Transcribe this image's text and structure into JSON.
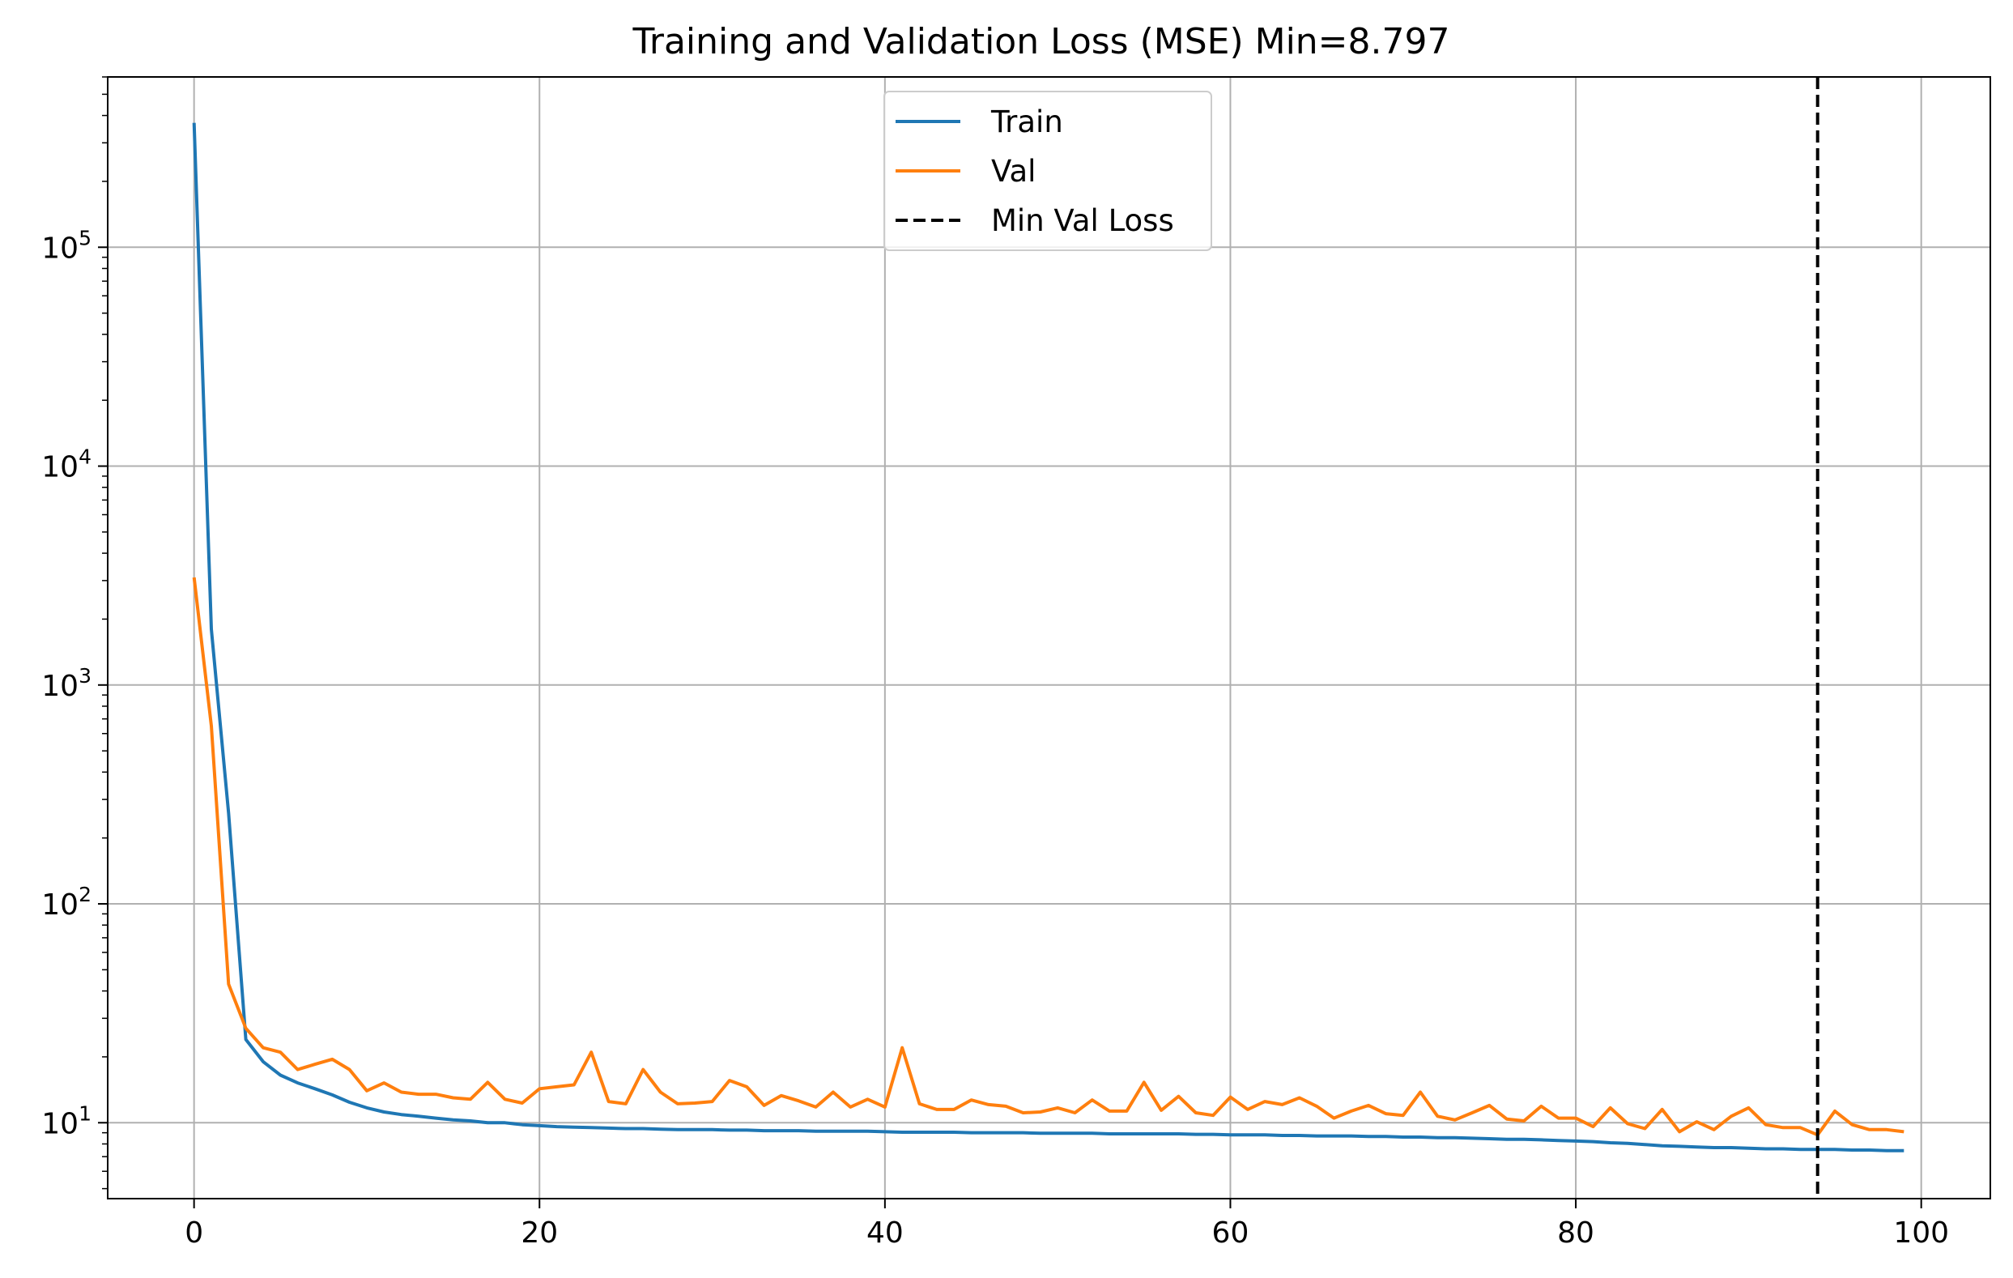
{
  "chart_data": {
    "type": "line",
    "title": "Training and Validation Loss (MSE) Min=8.797",
    "xlabel": "",
    "ylabel": "",
    "xlim": [
      -5,
      104
    ],
    "ylim": [
      4.5,
      600000
    ],
    "yscale": "log",
    "grid": true,
    "legend_position": "top-center",
    "x_ticks": [
      {
        "value": 0,
        "label": "0"
      },
      {
        "value": 20,
        "label": "20"
      },
      {
        "value": 40,
        "label": "40"
      },
      {
        "value": 60,
        "label": "60"
      },
      {
        "value": 80,
        "label": "80"
      },
      {
        "value": 100,
        "label": "100"
      }
    ],
    "y_ticks": [
      {
        "value": 10,
        "base": "10",
        "exponent": "1"
      },
      {
        "value": 100,
        "base": "10",
        "exponent": "2"
      },
      {
        "value": 1000,
        "base": "10",
        "exponent": "3"
      },
      {
        "value": 10000,
        "base": "10",
        "exponent": "4"
      },
      {
        "value": 100000,
        "base": "10",
        "exponent": "5"
      }
    ],
    "series": [
      {
        "name": "Train",
        "color": "#1f77b4",
        "style": "solid",
        "x": [
          0,
          1,
          2,
          3,
          4,
          5,
          6,
          7,
          8,
          9,
          10,
          11,
          12,
          13,
          14,
          15,
          16,
          17,
          18,
          19,
          20,
          21,
          22,
          23,
          24,
          25,
          26,
          27,
          28,
          29,
          30,
          31,
          32,
          33,
          34,
          35,
          36,
          37,
          38,
          39,
          40,
          41,
          42,
          43,
          44,
          45,
          46,
          47,
          48,
          49,
          50,
          51,
          52,
          53,
          54,
          55,
          56,
          57,
          58,
          59,
          60,
          61,
          62,
          63,
          64,
          65,
          66,
          67,
          68,
          69,
          70,
          71,
          72,
          73,
          74,
          75,
          76,
          77,
          78,
          79,
          80,
          81,
          82,
          83,
          84,
          85,
          86,
          87,
          88,
          89,
          90,
          91,
          92,
          93,
          94,
          95,
          96,
          97,
          98,
          99
        ],
        "values": [
          370000,
          1800,
          260,
          24,
          19,
          16.5,
          15.2,
          14.3,
          13.4,
          12.4,
          11.7,
          11.2,
          10.9,
          10.7,
          10.5,
          10.3,
          10.2,
          10.0,
          10.0,
          9.8,
          9.7,
          9.6,
          9.55,
          9.5,
          9.45,
          9.4,
          9.4,
          9.35,
          9.3,
          9.3,
          9.3,
          9.25,
          9.25,
          9.2,
          9.2,
          9.2,
          9.15,
          9.15,
          9.15,
          9.15,
          9.1,
          9.05,
          9.05,
          9.05,
          9.05,
          9.0,
          9.0,
          9.0,
          9.0,
          8.95,
          8.95,
          8.95,
          8.95,
          8.9,
          8.9,
          8.9,
          8.9,
          8.9,
          8.85,
          8.85,
          8.8,
          8.8,
          8.8,
          8.75,
          8.75,
          8.7,
          8.7,
          8.7,
          8.65,
          8.65,
          8.6,
          8.6,
          8.55,
          8.55,
          8.5,
          8.45,
          8.4,
          8.4,
          8.35,
          8.3,
          8.25,
          8.2,
          8.1,
          8.05,
          7.95,
          7.85,
          7.8,
          7.75,
          7.7,
          7.7,
          7.65,
          7.6,
          7.6,
          7.55,
          7.55,
          7.55,
          7.5,
          7.5,
          7.45,
          7.45
        ]
      },
      {
        "name": "Val",
        "color": "#ff7f0e",
        "style": "solid",
        "x": [
          0,
          1,
          2,
          3,
          4,
          5,
          6,
          7,
          8,
          9,
          10,
          11,
          12,
          13,
          14,
          15,
          16,
          17,
          18,
          19,
          20,
          21,
          22,
          23,
          24,
          25,
          26,
          27,
          28,
          29,
          30,
          31,
          32,
          33,
          34,
          35,
          36,
          37,
          38,
          39,
          40,
          41,
          42,
          43,
          44,
          45,
          46,
          47,
          48,
          49,
          50,
          51,
          52,
          53,
          54,
          55,
          56,
          57,
          58,
          59,
          60,
          61,
          62,
          63,
          64,
          65,
          66,
          67,
          68,
          69,
          70,
          71,
          72,
          73,
          74,
          75,
          76,
          77,
          78,
          79,
          80,
          81,
          82,
          83,
          84,
          85,
          86,
          87,
          88,
          89,
          90,
          91,
          92,
          93,
          94,
          95,
          96,
          97,
          98,
          99
        ],
        "values": [
          3100,
          650,
          43,
          27,
          22,
          21,
          17.5,
          18.5,
          19.5,
          17.5,
          14,
          15.2,
          13.8,
          13.5,
          13.5,
          13,
          12.8,
          15.3,
          12.8,
          12.3,
          14.3,
          14.6,
          14.9,
          21,
          12.5,
          12.2,
          17.5,
          13.8,
          12.2,
          12.3,
          12.5,
          15.6,
          14.6,
          12.0,
          13.3,
          12.6,
          11.8,
          13.8,
          11.8,
          12.8,
          11.8,
          22,
          12.2,
          11.5,
          11.5,
          12.7,
          12.1,
          11.9,
          11.1,
          11.2,
          11.7,
          11.1,
          12.7,
          11.3,
          11.3,
          15.3,
          11.4,
          13.2,
          11.1,
          10.8,
          13.1,
          11.5,
          12.5,
          12.1,
          13.0,
          11.9,
          10.5,
          11.3,
          12.0,
          11.0,
          10.8,
          13.8,
          10.7,
          10.3,
          11.1,
          12.0,
          10.4,
          10.2,
          11.9,
          10.5,
          10.5,
          9.6,
          11.7,
          9.9,
          9.4,
          11.5,
          9.1,
          10.1,
          9.3,
          10.7,
          11.7,
          9.8,
          9.5,
          9.5,
          8.797,
          11.3,
          9.8,
          9.3,
          9.3,
          9.1
        ]
      }
    ],
    "vlines": [
      {
        "name": "Min Val Loss",
        "x": 94,
        "color": "#000000",
        "style": "dashed"
      }
    ]
  }
}
